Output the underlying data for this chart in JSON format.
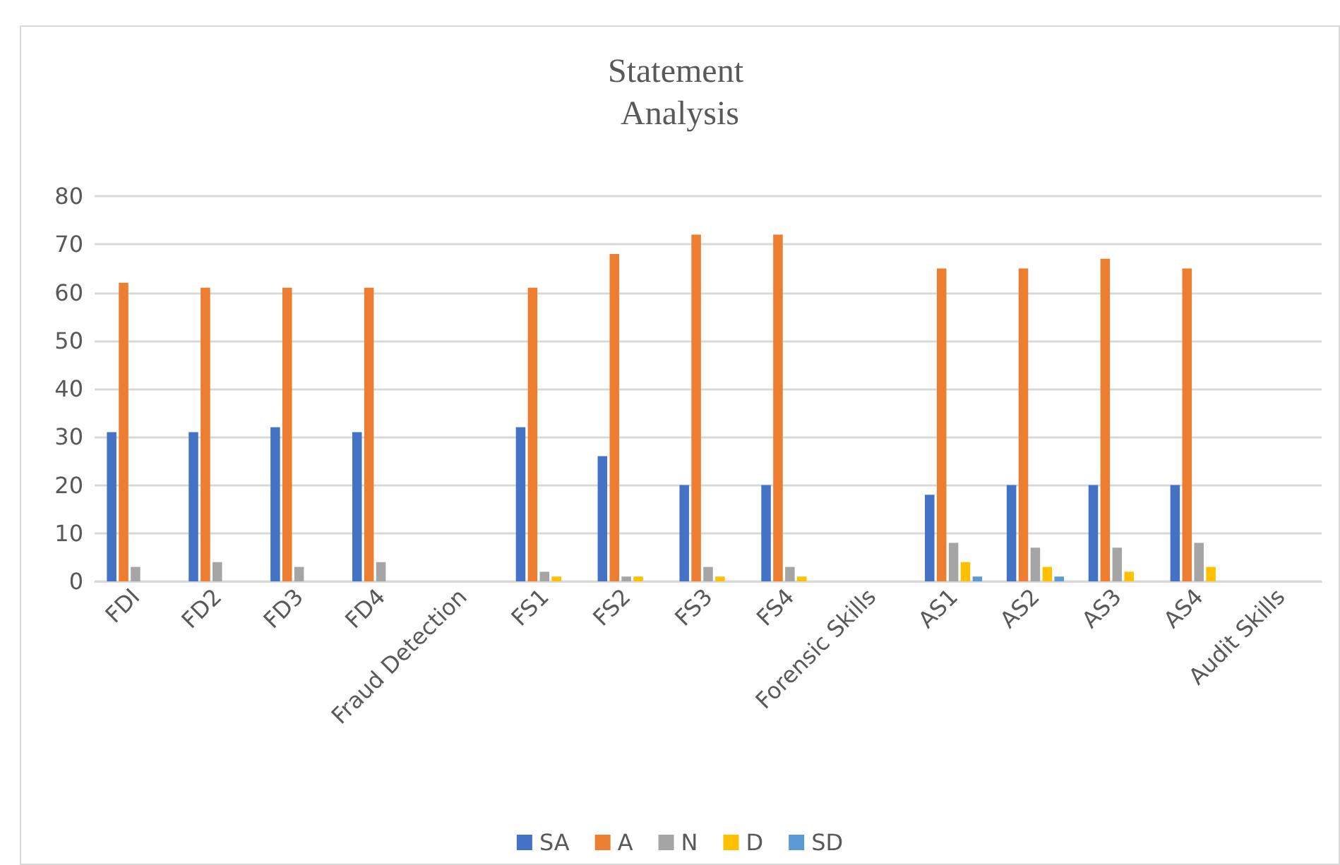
{
  "chart_data": {
    "type": "bar",
    "title": "Statement Analysis",
    "categories": [
      "FDI",
      "FD2",
      "FD3",
      "FD4",
      "Fraud Detection",
      "FS1",
      "FS2",
      "FS3",
      "FS4",
      "Forensic Skills",
      "AS1",
      "AS2",
      "AS3",
      "AS4",
      "Audit Skills"
    ],
    "series": [
      {
        "name": "SA",
        "color": "#4472c4",
        "values": [
          31,
          31,
          32,
          31,
          null,
          32,
          26,
          20,
          20,
          null,
          18,
          20,
          20,
          20,
          null
        ]
      },
      {
        "name": "A",
        "color": "#ed7d31",
        "values": [
          62,
          61,
          61,
          61,
          null,
          61,
          68,
          72,
          72,
          null,
          65,
          65,
          67,
          65,
          null
        ]
      },
      {
        "name": "N",
        "color": "#a5a5a5",
        "values": [
          3,
          4,
          3,
          4,
          null,
          2,
          1,
          3,
          3,
          null,
          8,
          7,
          7,
          8,
          null
        ]
      },
      {
        "name": "D",
        "color": "#ffc000",
        "values": [
          null,
          null,
          null,
          null,
          null,
          1,
          1,
          1,
          1,
          null,
          4,
          3,
          2,
          3,
          null
        ]
      },
      {
        "name": "SD",
        "color": "#5b9bd5",
        "values": [
          null,
          null,
          null,
          null,
          null,
          null,
          null,
          null,
          null,
          null,
          1,
          1,
          null,
          null,
          null
        ]
      }
    ],
    "ylim": [
      0,
      80
    ],
    "yticks": [
      0,
      10,
      20,
      30,
      40,
      50,
      60,
      70,
      80
    ],
    "grid": "y",
    "legend": "bottom"
  }
}
